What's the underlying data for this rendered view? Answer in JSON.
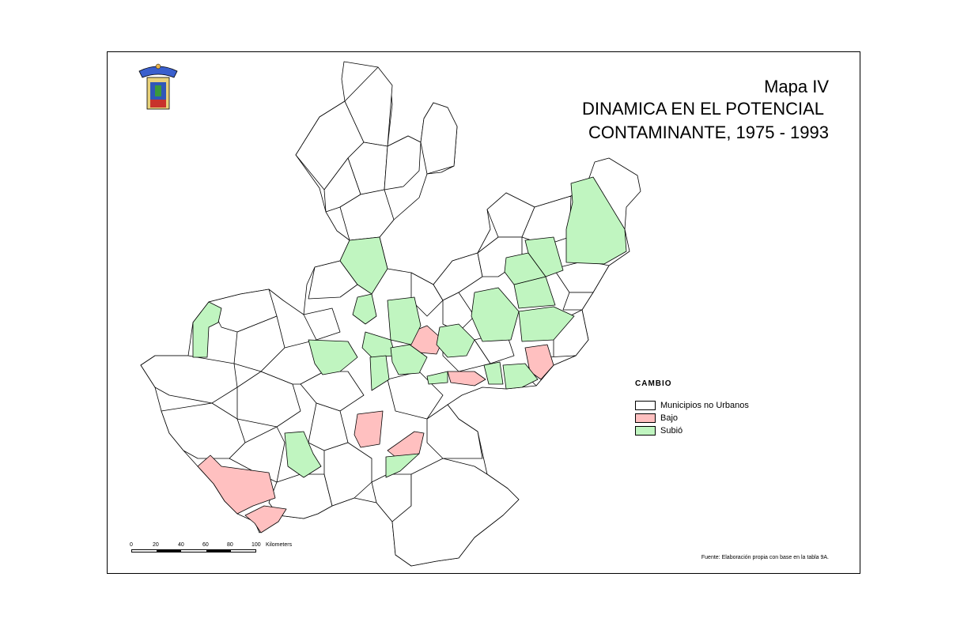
{
  "title": {
    "line1": "Mapa IV",
    "line2": "DINAMICA EN EL POTENCIAL",
    "line3": "CONTAMINANTE, 1975 - 1993"
  },
  "legend": {
    "title": "CAMBIO",
    "items": [
      {
        "label": "Municipios no Urbanos",
        "color": "#ffffff"
      },
      {
        "label": "Bajo",
        "color": "#ffc0c0"
      },
      {
        "label": "Subió",
        "color": "#c0f5c0"
      }
    ]
  },
  "scale": {
    "ticks": [
      "0",
      "20",
      "40",
      "60",
      "80",
      "100"
    ],
    "unit": "Kilometers"
  },
  "source": "Fuente: Elaboración propia con base en la tabla 9A.",
  "colors": {
    "none": "#ffffff",
    "bajo": "#ffc0c0",
    "subio": "#c0f5c0",
    "border": "#000000"
  }
}
